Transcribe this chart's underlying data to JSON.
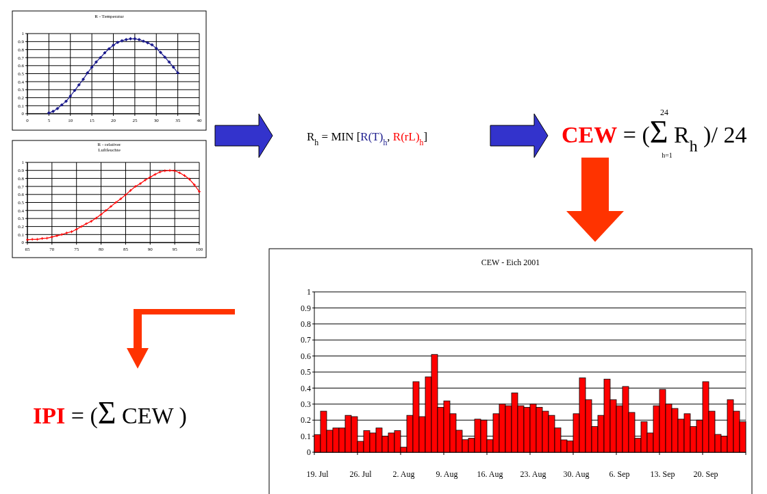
{
  "chart_data": [
    {
      "type": "line",
      "title": "R - Temperatur",
      "marker": "diamond",
      "grid": true,
      "xlim": [
        0,
        40
      ],
      "xticks": [
        0,
        5,
        10,
        15,
        20,
        25,
        30,
        35,
        40
      ],
      "ylim": [
        0,
        1
      ],
      "yticks": [
        0,
        0.1,
        0.2,
        0.3,
        0.4,
        0.5,
        0.6,
        0.7,
        0.8,
        0.9,
        1
      ],
      "series": [
        {
          "color": "#1a1a8c",
          "x": [
            5,
            6,
            7,
            8,
            9,
            10,
            11,
            12,
            13,
            14,
            15,
            16,
            17,
            18,
            19,
            20,
            21,
            22,
            23,
            24,
            25,
            26,
            27,
            28,
            29,
            30,
            31,
            32,
            33,
            34,
            35
          ],
          "values": [
            0.01,
            0.03,
            0.065,
            0.11,
            0.155,
            0.22,
            0.29,
            0.36,
            0.43,
            0.51,
            0.58,
            0.645,
            0.7,
            0.76,
            0.81,
            0.855,
            0.89,
            0.91,
            0.925,
            0.935,
            0.935,
            0.925,
            0.905,
            0.885,
            0.86,
            0.815,
            0.765,
            0.705,
            0.645,
            0.58,
            0.51
          ]
        }
      ]
    },
    {
      "type": "line",
      "title": "R - relativer Luftfeuchte",
      "marker": "cross",
      "grid": true,
      "xlim": [
        65,
        100
      ],
      "xticks": [
        65,
        70,
        75,
        80,
        85,
        90,
        95,
        100
      ],
      "ylim": [
        0,
        1
      ],
      "yticks": [
        0,
        0.1,
        0.2,
        0.3,
        0.4,
        0.5,
        0.6,
        0.7,
        0.8,
        0.9,
        1
      ],
      "series": [
        {
          "color": "#ff0000",
          "x": [
            65,
            66,
            67,
            68,
            69,
            70,
            71,
            72,
            73,
            74,
            75,
            76,
            77,
            78,
            79,
            80,
            81,
            82,
            83,
            84,
            85,
            86,
            87,
            88,
            89,
            90,
            91,
            92,
            93,
            94,
            95,
            96,
            97,
            98,
            99,
            100
          ],
          "values": [
            0.035,
            0.04,
            0.04,
            0.05,
            0.055,
            0.07,
            0.085,
            0.1,
            0.12,
            0.135,
            0.165,
            0.2,
            0.235,
            0.265,
            0.305,
            0.35,
            0.4,
            0.45,
            0.5,
            0.545,
            0.595,
            0.65,
            0.7,
            0.735,
            0.78,
            0.815,
            0.85,
            0.88,
            0.895,
            0.9,
            0.895,
            0.87,
            0.835,
            0.79,
            0.72,
            0.635
          ]
        }
      ]
    },
    {
      "type": "bar",
      "title": "CEW - Eich 2001",
      "grid": "y",
      "ylim": [
        0,
        1
      ],
      "yticks": [
        0,
        0.1,
        0.2,
        0.3,
        0.4,
        0.5,
        0.6,
        0.7,
        0.8,
        0.9,
        1
      ],
      "categories": [
        "19. Jul",
        null,
        null,
        null,
        null,
        null,
        null,
        "26. Jul",
        null,
        null,
        null,
        null,
        null,
        null,
        "2. Aug",
        null,
        null,
        null,
        null,
        null,
        null,
        "9. Aug",
        null,
        null,
        null,
        null,
        null,
        null,
        "16. Aug",
        null,
        null,
        null,
        null,
        null,
        null,
        "23. Aug",
        null,
        null,
        null,
        null,
        null,
        null,
        "30. Aug",
        null,
        null,
        null,
        null,
        null,
        null,
        "6. Sep",
        null,
        null,
        null,
        null,
        null,
        null,
        "13. Sep",
        null,
        null,
        null,
        null,
        null,
        null,
        "20. Sep",
        null,
        null,
        null,
        null,
        null,
        null
      ],
      "series": [
        {
          "color": "#ff0000",
          "values": [
            0.11,
            0.256,
            0.137,
            0.151,
            0.151,
            0.23,
            0.222,
            0.068,
            0.135,
            0.12,
            0.151,
            0.1,
            0.12,
            0.135,
            0.031,
            0.23,
            0.44,
            0.222,
            0.47,
            0.61,
            0.28,
            0.32,
            0.24,
            0.137,
            0.078,
            0.087,
            0.206,
            0.2,
            0.078,
            0.24,
            0.3,
            0.29,
            0.37,
            0.29,
            0.28,
            0.3,
            0.28,
            0.256,
            0.23,
            0.152,
            0.077,
            0.07,
            0.24,
            0.464,
            0.328,
            0.16,
            0.23,
            0.456,
            0.328,
            0.29,
            0.41,
            0.248,
            0.087,
            0.19,
            0.12,
            0.29,
            0.392,
            0.3,
            0.273,
            0.206,
            0.24,
            0.16,
            0.2,
            0.44,
            0.256,
            0.111,
            0.1,
            0.328,
            0.256,
            0.19
          ]
        }
      ]
    },
    {
      "type": "other",
      "annotations": [
        "R$_{h}$ = MIN [",
        "R(T)$_{h}$",
        ", ",
        "R(rL)$_{h}$",
        "]",
        "CEW",
        " = (",
        "Σ",
        " R$_{h}$ )/ 24",
        "24",
        "h=1",
        "IPI",
        " = (",
        "Σ",
        " CEW )"
      ],
      "colors": [
        "#000000",
        "#1a1a8c",
        "#000000",
        "#ff0000",
        "#000000",
        "#ff0000",
        "#000000",
        "#000000",
        "#000000",
        "#000000",
        "#000000",
        "#ff0000",
        "#000000",
        "#000000",
        "#000000"
      ]
    }
  ]
}
